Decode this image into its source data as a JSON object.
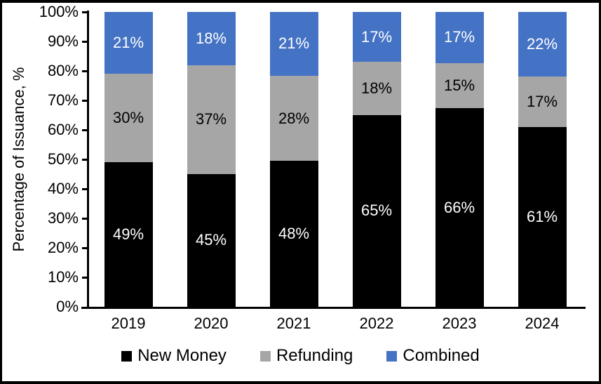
{
  "figure": {
    "background_color": "#FFFFFF",
    "border_color": "#000000"
  },
  "chart_data": {
    "type": "bar",
    "stacked": true,
    "title": "",
    "xlabel": "",
    "ylabel": "Percentage of Issuance, %",
    "categories": [
      "2019",
      "2020",
      "2021",
      "2022",
      "2023",
      "2024"
    ],
    "series": [
      {
        "name": "New Money",
        "color": "#000000",
        "label_color": "#FFFFFF",
        "values": [
          49,
          45,
          48,
          65,
          66,
          61
        ],
        "labels": [
          "49%",
          "45%",
          "48%",
          "65%",
          "66%",
          "61%"
        ]
      },
      {
        "name": "Refunding",
        "color": "#A6A6A6",
        "label_color": "#000000",
        "values": [
          30,
          37,
          28,
          18,
          15,
          17
        ],
        "labels": [
          "30%",
          "37%",
          "28%",
          "18%",
          "15%",
          "17%"
        ]
      },
      {
        "name": "Combined",
        "color": "#4472C4",
        "label_color": "#FFFFFF",
        "values": [
          21,
          18,
          21,
          17,
          17,
          22
        ],
        "labels": [
          "21%",
          "18%",
          "21%",
          "17%",
          "17%",
          "22%"
        ]
      }
    ],
    "ylim": [
      0,
      100
    ],
    "ytick_step": 10,
    "ytick_labels": [
      "0%",
      "10%",
      "20%",
      "30%",
      "40%",
      "50%",
      "60%",
      "70%",
      "80%",
      "90%",
      "100%"
    ],
    "grid": false,
    "legend_position": "bottom",
    "legend": [
      "New Money",
      "Refunding",
      "Combined"
    ]
  }
}
